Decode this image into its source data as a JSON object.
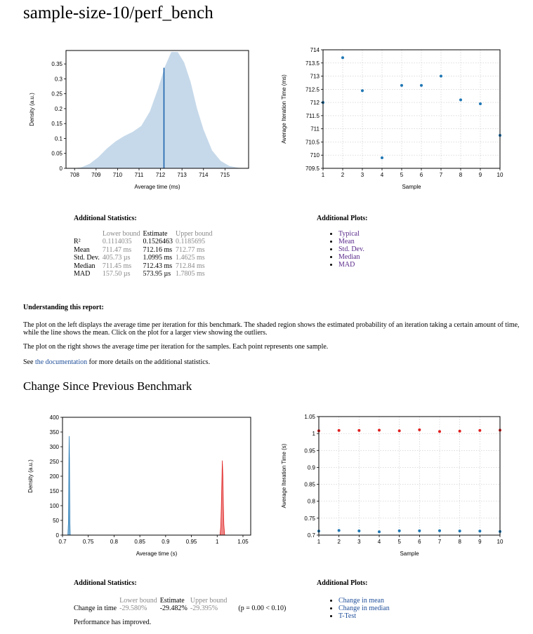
{
  "title": "sample-size-10/perf_bench",
  "pdf_plot": {
    "xlabel": "Average time (ms)",
    "ylabel": "Density (a.u.)",
    "x_ticks": [
      "708",
      "709",
      "710",
      "711",
      "712",
      "713",
      "714",
      "715"
    ],
    "y_ticks": [
      "0",
      "0.05",
      "0.1",
      "0.15",
      "0.2",
      "0.25",
      "0.3",
      "0.35"
    ],
    "mean": 712.16,
    "colors": {
      "fill": "#c6d9ea",
      "line": "#1f63ad"
    }
  },
  "samples_plot": {
    "xlabel": "Sample",
    "ylabel": "Average Iteration Time (ms)",
    "x_ticks": [
      "1",
      "2",
      "3",
      "4",
      "5",
      "6",
      "7",
      "8",
      "9",
      "10"
    ],
    "y_ticks": [
      "709.5",
      "710",
      "710.5",
      "711",
      "711.5",
      "712",
      "712.5",
      "713",
      "713.5",
      "714"
    ],
    "color": "#1f77b4"
  },
  "additional_statistics": {
    "heading": "Additional Statistics:",
    "col_lower": "Lower bound",
    "col_estimate": "Estimate",
    "col_upper": "Upper bound",
    "rows": [
      {
        "label": "R²",
        "lower": "0.1114035",
        "estimate": "0.1526463",
        "upper": "0.1185695"
      },
      {
        "label": "Mean",
        "lower": "711.47 ms",
        "estimate": "712.16 ms",
        "upper": "712.77 ms"
      },
      {
        "label": "Std. Dev.",
        "lower": "405.73 µs",
        "estimate": "1.0995 ms",
        "upper": "1.4625 ms"
      },
      {
        "label": "Median",
        "lower": "711.45 ms",
        "estimate": "712.43 ms",
        "upper": "712.84 ms"
      },
      {
        "label": "MAD",
        "lower": "157.50 µs",
        "estimate": "573.95 µs",
        "upper": "1.7805 ms"
      }
    ]
  },
  "additional_plots": {
    "heading": "Additional Plots:",
    "items": [
      "Typical",
      "Mean",
      "Std. Dev.",
      "Median",
      "MAD"
    ]
  },
  "understanding": {
    "heading": "Understanding this report:",
    "p1": "The plot on the left displays the average time per iteration for this benchmark. The shaded region shows the estimated probability of an iteration taking a certain amount of time, while the line shows the mean. Click on the plot for a larger view showing the outliers.",
    "p2": "The plot on the right shows the average time per iteration for the samples. Each point represents one sample.",
    "p3_pre": "See ",
    "p3_link": "the documentation",
    "p3_post": " for more details on the additional statistics."
  },
  "change_section": {
    "title": "Change Since Previous Benchmark",
    "pdf_plot": {
      "xlabel": "Average time (s)",
      "ylabel": "Density (a.u.)",
      "x_ticks": [
        "0.7",
        "0.75",
        "0.8",
        "0.85",
        "0.9",
        "0.95",
        "1",
        "1.05"
      ],
      "y_ticks": [
        "0",
        "50",
        "100",
        "150",
        "200",
        "250",
        "300",
        "350",
        "400"
      ],
      "colors": {
        "new": "#1f77b4",
        "base": "#e02020"
      }
    },
    "samples_plot": {
      "xlabel": "Sample",
      "ylabel": "Average Iteration Time (s)",
      "x_ticks": [
        "1",
        "2",
        "3",
        "4",
        "5",
        "6",
        "7",
        "8",
        "9",
        "10"
      ],
      "y_ticks": [
        "0.7",
        "0.75",
        "0.8",
        "0.85",
        "0.9",
        "0.95",
        "1",
        "1.05"
      ],
      "colors": {
        "new": "#1f77b4",
        "base": "#e02020"
      }
    },
    "stats": {
      "heading": "Additional Statistics:",
      "col_lower": "Lower bound",
      "col_estimate": "Estimate",
      "col_upper": "Upper bound",
      "row_label": "Change in time",
      "lower": "-29.580%",
      "estimate": "-29.482%",
      "upper": "-29.395%",
      "p_value": "(p = 0.00 < 0.10)",
      "verdict": "Performance has improved."
    },
    "plots": {
      "heading": "Additional Plots:",
      "items": [
        "Change in mean",
        "Change in median",
        "T-Test"
      ]
    }
  },
  "chart_data": [
    {
      "type": "area",
      "xlabel": "Average time (ms)",
      "ylabel": "Density (a.u.)",
      "xlim": [
        707.6,
        716.1
      ],
      "ylim": [
        0,
        0.395
      ],
      "x": [
        707.9,
        708.3,
        708.7,
        709.1,
        709.5,
        709.9,
        710.3,
        710.7,
        711.1,
        711.5,
        711.9,
        712.2,
        712.5,
        712.8,
        713.1,
        713.4,
        713.7,
        714.0,
        714.4,
        714.8,
        715.2,
        715.6,
        716.0
      ],
      "y": [
        0.0,
        0.003,
        0.015,
        0.037,
        0.066,
        0.09,
        0.108,
        0.122,
        0.142,
        0.19,
        0.27,
        0.34,
        0.39,
        0.39,
        0.355,
        0.29,
        0.2,
        0.13,
        0.06,
        0.025,
        0.008,
        0.002,
        0.0
      ],
      "mean_line": {
        "x": 712.16,
        "y": 0.337
      }
    },
    {
      "type": "scatter",
      "xlabel": "Sample",
      "ylabel": "Average Iteration Time (ms)",
      "xlim": [
        1,
        10
      ],
      "ylim": [
        709.5,
        714
      ],
      "x": [
        1,
        2,
        3,
        4,
        5,
        6,
        7,
        8,
        9,
        10
      ],
      "y": [
        712.0,
        713.7,
        712.45,
        709.9,
        712.65,
        712.65,
        713.0,
        712.1,
        711.95,
        710.75
      ]
    },
    {
      "type": "area",
      "xlabel": "Average time (s)",
      "ylabel": "Density (a.u.)",
      "xlim": [
        0.7,
        1.065
      ],
      "ylim": [
        0,
        400
      ],
      "series": [
        {
          "x": [
            0.7105,
            0.7115,
            0.712,
            0.7125,
            0.713,
            0.7135,
            0.714,
            0.7145,
            0.715
          ],
          "y": [
            0,
            40,
            120,
            260,
            336,
            260,
            120,
            40,
            0
          ]
        },
        {
          "x": [
            1.0055,
            1.007,
            1.008,
            1.009,
            1.01,
            1.011,
            1.012,
            1.013,
            1.0145
          ],
          "y": [
            0,
            30,
            90,
            180,
            253,
            200,
            100,
            35,
            0
          ]
        }
      ]
    },
    {
      "type": "scatter",
      "xlabel": "Sample",
      "ylabel": "Average Iteration Time (s)",
      "xlim": [
        1,
        10
      ],
      "ylim": [
        0.7,
        1.05
      ],
      "series": [
        {
          "x": [
            1,
            2,
            3,
            4,
            5,
            6,
            7,
            8,
            9,
            10
          ],
          "y": [
            0.712,
            0.7137,
            0.7124,
            0.7099,
            0.7126,
            0.7126,
            0.713,
            0.7121,
            0.7119,
            0.7107
          ]
        },
        {
          "x": [
            1,
            2,
            3,
            4,
            5,
            6,
            7,
            8,
            9,
            10
          ],
          "y": [
            1.008,
            1.009,
            1.009,
            1.01,
            1.008,
            1.011,
            1.006,
            1.007,
            1.009,
            1.01
          ]
        }
      ]
    }
  ]
}
